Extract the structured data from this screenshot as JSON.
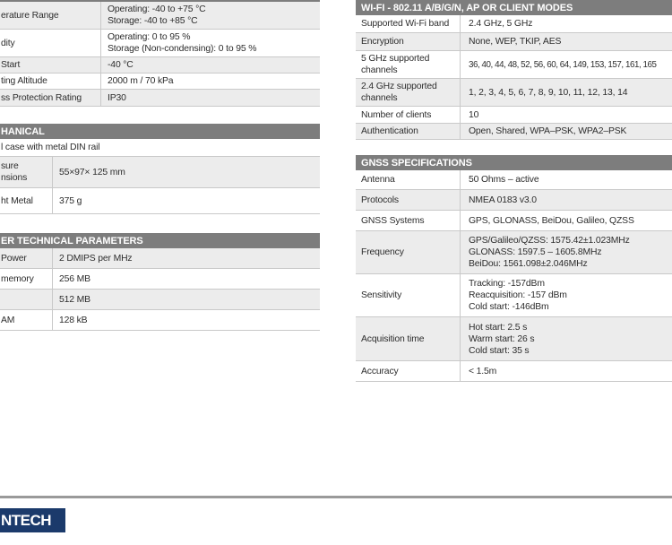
{
  "left": {
    "environment": {
      "rows": [
        {
          "label": "erature Range",
          "value": "Operating: -40 to +75 °C\nStorage:  -40 to +85 °C"
        },
        {
          "label": "dity",
          "value": "Operating: 0 to 95 %\nStorage (Non-condensing):  0 to 95 %"
        },
        {
          "label": "Start",
          "value": "-40 °C"
        },
        {
          "label": "ting Altitude",
          "value": "2000 m / 70 kPa"
        },
        {
          "label": "ss Protection Rating",
          "value": "IP30"
        }
      ]
    },
    "mechanical": {
      "header": "HANICAL",
      "full_row": "l case with metal DIN rail",
      "rows": [
        {
          "label": "sure\nnsions",
          "value": "55×97× 125 mm"
        },
        {
          "label": "ht Metal",
          "value": "375 g"
        }
      ]
    },
    "other": {
      "header": "ER TECHNICAL PARAMETERS",
      "rows": [
        {
          "label": "Power",
          "value": "2 DMIPS per MHz"
        },
        {
          "label": "memory",
          "value": "256 MB"
        },
        {
          "label": "",
          "value": "512 MB"
        },
        {
          "label": "AM",
          "value": "128 kB"
        }
      ]
    }
  },
  "right": {
    "wifi": {
      "header": "WI-FI - 802.11 A/B/G/N, AP OR CLIENT MODES",
      "rows": [
        {
          "label": "Supported Wi-Fi band",
          "value": "2.4 GHz, 5 GHz"
        },
        {
          "label": "Encryption",
          "value": "None, WEP, TKIP, AES"
        },
        {
          "label": "5 GHz supported\nchannels",
          "value": "36, 40, 44, 48, 52, 56, 60, 64, 149, 153, 157, 161, 165"
        },
        {
          "label": "2.4 GHz supported\nchannels",
          "value": "1, 2, 3, 4, 5, 6, 7, 8, 9, 10, 11, 12, 13, 14"
        },
        {
          "label": "Number of clients",
          "value": "10"
        },
        {
          "label": "Authentication",
          "value": "Open, Shared, WPA–PSK, WPA2–PSK"
        }
      ]
    },
    "gnss": {
      "header": "GNSS SPECIFICATIONS",
      "rows": [
        {
          "label": "Antenna",
          "value": "50 Ohms – active"
        },
        {
          "label": "Protocols",
          "value": "NMEA 0183 v3.0"
        },
        {
          "label": "GNSS Systems",
          "value": "GPS, GLONASS, BeiDou, Galileo, QZSS"
        },
        {
          "label": "Frequency",
          "value": "GPS/Galileo/QZSS: 1575.42±1.023MHz\nGLONASS: 1597.5 – 1605.8MHz\nBeiDou: 1561.098±2.046MHz"
        },
        {
          "label": "Sensitivity",
          "value": "Tracking: -157dBm\nReacquisition: -157 dBm\nCold start: -146dBm"
        },
        {
          "label": "Acquisition time",
          "value": "Hot start: 2.5 s\nWarm start: 26 s\nCold start: 35 s"
        },
        {
          "label": "Accuracy",
          "value": "< 1.5m"
        }
      ]
    }
  },
  "footer": {
    "logo_text": "NTECH"
  },
  "colors": {
    "section_header_bg": "#7d7d7d",
    "alt_row_bg": "#ececec",
    "row_border": "#c9c9c9",
    "footer_rule": "#9a9a9a",
    "logo_navy": "#1b3a6b"
  }
}
